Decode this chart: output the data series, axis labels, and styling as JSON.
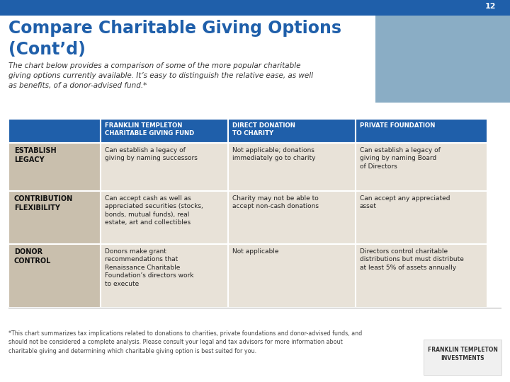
{
  "page_num": "12",
  "title_line1": "Compare Charitable Giving Options",
  "title_line2": "(Cont’d)",
  "subtitle": "The chart below provides a comparison of some of the more popular charitable\ngiving options currently available. It’s easy to distinguish the relative ease, as well\nas benefits, of a donor-advised fund.*",
  "header_bg": "#1f5faa",
  "header_text_color": "#ffffff",
  "row_label_bg": "#c9bfad",
  "row_data_bg": "#e8e2d8",
  "border_color": "#ffffff",
  "top_bar_color": "#1f5faa",
  "title_color": "#1f5faa",
  "page_bg": "#ffffff",
  "col_headers": [
    "FRANKLIN TEMPLETON\nCHARITABLE GIVING FUND",
    "DIRECT DONATION\nTO CHARITY",
    "PRIVATE FOUNDATION"
  ],
  "row_labels": [
    "ESTABLISH\nLEGACY",
    "CONTRIBUTION\nFLEXIBILITY",
    "DONOR\nCONTROL"
  ],
  "row_data": [
    [
      "Can establish a legacy of\ngiving by naming successors",
      "Not applicable; donations\nimmediately go to charity",
      "Can establish a legacy of\ngiving by naming Board\nof Directors"
    ],
    [
      "Can accept cash as well as\nappreciated securities (stocks,\nbonds, mutual funds), real\nestate, art and collectibles",
      "Charity may not be able to\naccept non-cash donations",
      "Can accept any appreciated\nasset"
    ],
    [
      "Donors make grant\nrecommendations that\nRenaissance Charitable\nFoundation’s directors work\nto execute",
      "Not applicable",
      "Directors control charitable\ndistributions but must distribute\nat least 5% of assets annually"
    ]
  ],
  "footnote": "*This chart summarizes tax implications related to donations to charities, private foundations and donor-advised funds, and\nshould not be considered a complete analysis. Please consult your legal and tax advisors for more information about\ncharitable giving and determining which charitable giving option is best suited for you."
}
